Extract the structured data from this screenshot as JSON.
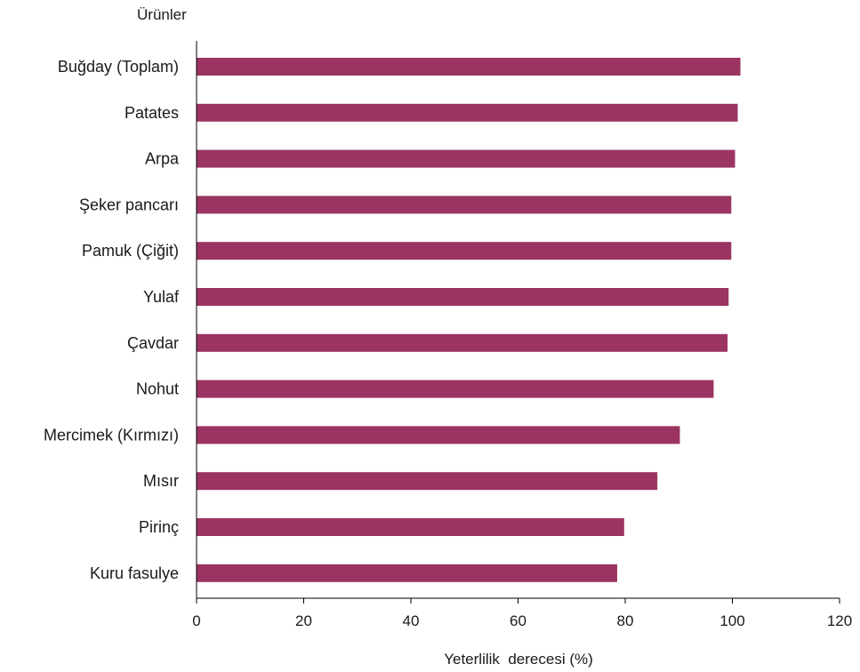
{
  "chart_data": {
    "type": "bar",
    "orientation": "horizontal",
    "ylabel": "Ürünler",
    "xlabel": "Yeterlilik  derecesi (%)",
    "xlim": [
      0,
      120
    ],
    "xticks": [
      0,
      20,
      40,
      60,
      80,
      100,
      120
    ],
    "grid": false,
    "legend": "none",
    "bar_color": "#9b3461",
    "categories": [
      "Buğday (Toplam)",
      "Patates",
      "Arpa",
      "Şeker pancarı",
      "Pamuk (Çiğit)",
      "Yulaf",
      "Çavdar",
      "Nohut",
      "Mercimek  (Kırmızı)",
      "Mısır",
      "Pirinç",
      "Kuru fasulye"
    ],
    "values": [
      101.5,
      101,
      100.5,
      99.8,
      99.8,
      99.3,
      99.1,
      96.5,
      90.2,
      86,
      79.8,
      78.5
    ]
  }
}
